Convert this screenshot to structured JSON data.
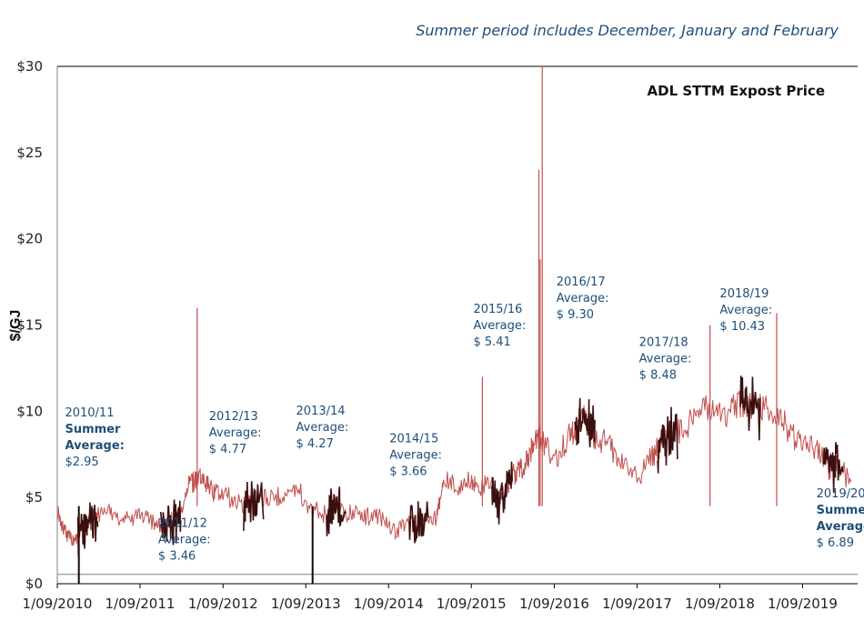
{
  "note": "Summer period includes December, January and February",
  "chart_data": {
    "type": "line",
    "title": "ADL STTM Expost Price",
    "ylabel": "$/GJ",
    "xlabel": "",
    "ylim": [
      0,
      30
    ],
    "xlim": [
      "2010-09-01",
      "2020-05-01"
    ],
    "y_ticks": [
      "$0",
      "$5",
      "$10",
      "$15",
      "$20",
      "$25",
      "$30"
    ],
    "y_tick_values": [
      0,
      5,
      10,
      15,
      20,
      25,
      30
    ],
    "x_ticks": [
      "1/09/2010",
      "1/09/2011",
      "1/09/2012",
      "1/09/2013",
      "1/09/2014",
      "1/09/2015",
      "1/09/2016",
      "1/09/2017",
      "1/09/2018",
      "1/09/2019"
    ],
    "x_tick_dates": [
      "2010-09-01",
      "2011-09-01",
      "2012-09-01",
      "2013-09-01",
      "2014-09-01",
      "2015-09-01",
      "2016-09-01",
      "2017-09-01",
      "2018-09-01",
      "2019-09-01"
    ],
    "grid": false,
    "colors": {
      "price": "#c0504d",
      "summer": "#3a0f0f",
      "note": "#1f4e79",
      "summer_fill": "#8b2a2a"
    },
    "series": [
      {
        "x": [
          "2010-09-01",
          "2010-10-01",
          "2010-11-01",
          "2010-12-01",
          "2011-01-01",
          "2011-02-01",
          "2011-03-01",
          "2011-05-01",
          "2011-07-01",
          "2011-09-01",
          "2011-11-01",
          "2011-12-01",
          "2012-01-01",
          "2012-02-01",
          "2012-03-01",
          "2012-04-01",
          "2012-05-01",
          "2012-06-01",
          "2012-07-01",
          "2012-08-01",
          "2012-10-01",
          "2012-12-01",
          "2013-01-01",
          "2013-02-01",
          "2013-04-01",
          "2013-06-01",
          "2013-08-01",
          "2013-10-01",
          "2013-12-01",
          "2014-01-01",
          "2014-02-01",
          "2014-04-01",
          "2014-06-01",
          "2014-08-01",
          "2014-10-01",
          "2014-12-01",
          "2015-01-01",
          "2015-02-01",
          "2015-04-01",
          "2015-05-01",
          "2015-07-01",
          "2015-09-01",
          "2015-10-01",
          "2015-12-01",
          "2016-01-01",
          "2016-02-01",
          "2016-03-01",
          "2016-04-01",
          "2016-05-01",
          "2016-06-01",
          "2016-07-01",
          "2016-09-01",
          "2016-11-01",
          "2016-12-01",
          "2017-01-01",
          "2017-02-01",
          "2017-03-01",
          "2017-05-01",
          "2017-07-01",
          "2017-09-01",
          "2017-11-01",
          "2017-12-01",
          "2018-01-01",
          "2018-02-01",
          "2018-04-01",
          "2018-06-01",
          "2018-08-01",
          "2018-10-01",
          "2018-12-01",
          "2019-01-01",
          "2019-02-01",
          "2019-04-01",
          "2019-06-01",
          "2019-08-01",
          "2019-10-01",
          "2019-12-01",
          "2020-01-01",
          "2020-02-01",
          "2020-04-01"
        ],
        "values": [
          4.3,
          3.2,
          2.5,
          2.6,
          3.6,
          3.4,
          4.0,
          4.1,
          3.7,
          4.0,
          3.5,
          3.2,
          3.6,
          3.7,
          3.9,
          5.8,
          5.9,
          6.1,
          5.6,
          5.2,
          5.0,
          4.6,
          4.9,
          4.8,
          5.0,
          5.2,
          5.4,
          4.3,
          4.0,
          4.7,
          4.3,
          4.0,
          3.9,
          3.8,
          3.0,
          3.6,
          3.3,
          4.0,
          3.8,
          6.0,
          5.5,
          6.2,
          5.5,
          5.8,
          4.8,
          5.6,
          6.3,
          6.5,
          7.2,
          8.0,
          8.5,
          7.0,
          8.5,
          9.0,
          9.6,
          9.3,
          8.5,
          8.0,
          7.2,
          6.0,
          7.3,
          7.8,
          8.6,
          8.8,
          9.0,
          10.0,
          10.2,
          9.8,
          10.4,
          10.6,
          10.2,
          10.0,
          9.4,
          8.5,
          8.0,
          7.4,
          6.6,
          6.8,
          5.9
        ]
      }
    ],
    "spikes": [
      {
        "x": "2012-05-10",
        "value": 16.0
      },
      {
        "x": "2015-10-20",
        "value": 12.0
      },
      {
        "x": "2016-07-10",
        "value": 30.0
      },
      {
        "x": "2016-06-25",
        "value": 24.0
      },
      {
        "x": "2016-07-01",
        "value": 18.8
      },
      {
        "x": "2018-07-20",
        "value": 15.0
      },
      {
        "x": "2019-05-10",
        "value": 15.7
      },
      {
        "x": "2013-10-01",
        "value": 0.0
      },
      {
        "x": "2010-12-05",
        "value": 0.0
      }
    ],
    "annotations": [
      {
        "lines": [
          "2010/11",
          "Summer",
          "Average:",
          "$2.95"
        ],
        "bold": [
          false,
          true,
          true,
          false
        ],
        "x": "2010-10-05",
        "y": 9.7
      },
      {
        "lines": [
          "2011/12",
          "Average:",
          "$ 3.46"
        ],
        "bold": [
          false,
          false,
          false
        ],
        "x": "2011-11-20",
        "y": 3.3
      },
      {
        "lines": [
          "2012/13",
          "Average:",
          "$ 4.77"
        ],
        "bold": [
          false,
          false,
          false
        ],
        "x": "2012-07-01",
        "y": 9.5
      },
      {
        "lines": [
          "2013/14",
          "Average:",
          "$ 4.27"
        ],
        "bold": [
          false,
          false,
          false
        ],
        "x": "2013-07-20",
        "y": 9.8
      },
      {
        "lines": [
          "2014/15",
          "Average:",
          "$ 3.66"
        ],
        "bold": [
          false,
          false,
          false
        ],
        "x": "2014-09-05",
        "y": 8.2
      },
      {
        "lines": [
          "2015/16",
          "Average:",
          "$ 5.41"
        ],
        "bold": [
          false,
          false,
          false
        ],
        "x": "2015-09-10",
        "y": 15.7
      },
      {
        "lines": [
          "2016/17",
          "Average:",
          "$ 9.30"
        ],
        "bold": [
          false,
          false,
          false
        ],
        "x": "2016-09-10",
        "y": 17.3
      },
      {
        "lines": [
          "2017/18",
          "Average:",
          "$ 8.48"
        ],
        "bold": [
          false,
          false,
          false
        ],
        "x": "2017-09-10",
        "y": 13.8
      },
      {
        "lines": [
          "2018/19",
          "Average:",
          "$ 10.43"
        ],
        "bold": [
          false,
          false,
          false
        ],
        "x": "2018-09-01",
        "y": 16.6
      },
      {
        "lines": [
          "2019/20",
          "Summer",
          "Average:",
          "$ 6.89"
        ],
        "bold": [
          false,
          true,
          true,
          false
        ],
        "x": "2019-11-01",
        "y": 5.0
      }
    ],
    "summer_average_line": 0.55
  }
}
